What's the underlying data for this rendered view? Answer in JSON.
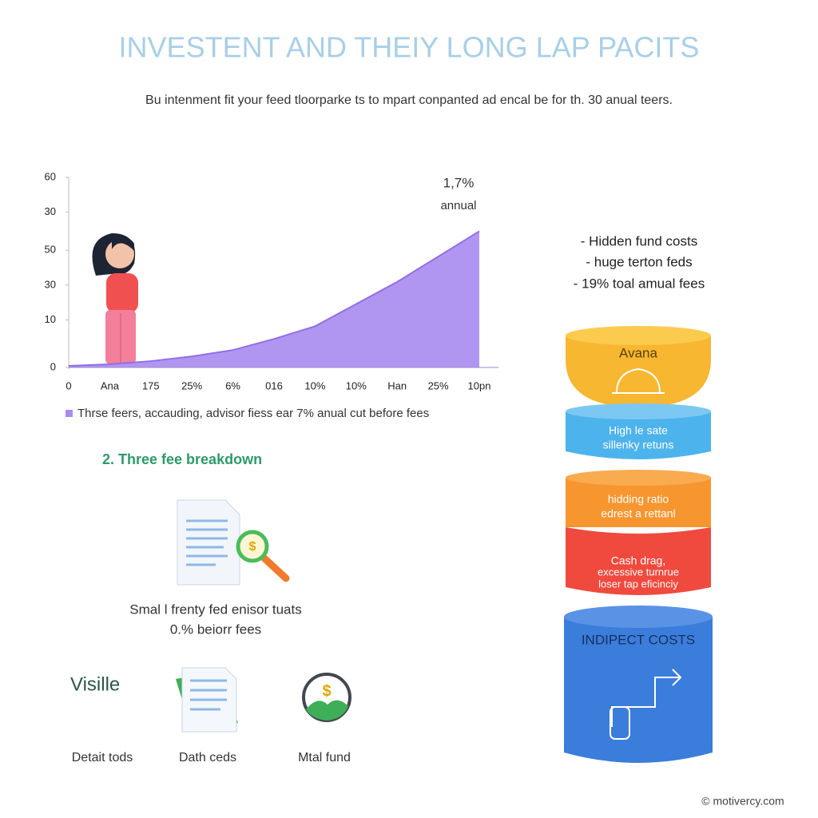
{
  "header": {
    "title": "INVESTENT AND THEIY LONG LAP PACITS",
    "subtitle": "Bu intenment fit your feed tloorparke ts to mpart conpanted ad encal be for th. 30 anual teers."
  },
  "chart_data": {
    "type": "area",
    "categories": [
      "0",
      "Ana",
      "175",
      "25%",
      "6%",
      "016",
      "10%",
      "10%",
      "Han",
      "25%",
      "10pn"
    ],
    "values": [
      0.5,
      1,
      2,
      3.5,
      5.5,
      9,
      13,
      20,
      27,
      35,
      43
    ],
    "color": "#a98bf0",
    "ylim": [
      0,
      60
    ],
    "yticks": [
      60,
      {
        "value": 49,
        "label": "30"
      },
      {
        "value": 37,
        "label": "50"
      },
      {
        "value": 26,
        "label": "30"
      },
      {
        "value": 15,
        "label": "10"
      },
      0
    ],
    "annotations": [
      "1,7%",
      "annual"
    ],
    "legend": "Thrse feers, accauding, advisor fiess ear 7% anual cut before fees"
  },
  "bullets": [
    "- Hidden fund costs",
    "- huge terton feds",
    "- 19% toal amual fees"
  ],
  "breakdown": {
    "heading": "2. Three fee breakdown",
    "caption": [
      "Smal l frenty fed enisor tuats",
      "0.% beiorr fees"
    ]
  },
  "visible": {
    "title": "Visille",
    "items": [
      "Detait tods",
      "Dath ceds",
      "Mtal fund"
    ]
  },
  "stack": [
    [
      "Avana"
    ],
    [
      "High le sate",
      "sillenky retuns"
    ],
    [
      "hidding ratio",
      "edrest a rettanl"
    ],
    [
      "Cash drag,",
      "excessive turnrue",
      "loser tap eficinciy"
    ],
    [
      "INDIPECT COSTS"
    ]
  ],
  "footer": "© motivercy.com"
}
